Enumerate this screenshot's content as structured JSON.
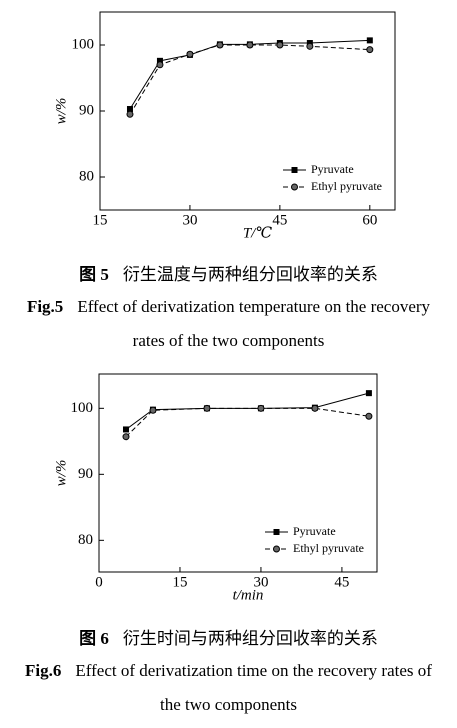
{
  "chart_data": [
    {
      "type": "line",
      "x_label": "T/℃",
      "y_label": "w/%",
      "x": [
        20,
        25,
        30,
        35,
        40,
        45,
        50,
        60
      ],
      "series": [
        {
          "name": "Pyruvate",
          "color": "#000000",
          "marker": "square",
          "dash": false,
          "values": [
            90.3,
            97.6,
            98.5,
            100.1,
            100.1,
            100.3,
            100.3,
            100.7
          ]
        },
        {
          "name": "Ethyl pyruvate",
          "color": "#000000",
          "marker": "circle",
          "dash": true,
          "values": [
            89.5,
            97.0,
            98.6,
            100.0,
            100.0,
            100.0,
            99.8,
            99.3
          ]
        }
      ],
      "xlim": [
        15,
        64.2
      ],
      "xticks": [
        15,
        30,
        45,
        60
      ],
      "ylim": [
        75,
        105
      ],
      "yticks": [
        80,
        90,
        100
      ],
      "legend": "lower right",
      "figure_label_zh": "图 5",
      "caption_zh": "衍生温度与两种组分回收率的关系",
      "figure_label_en": "Fig.5",
      "caption_en": "Effect of derivatization temperature on the recovery rates of the two components"
    },
    {
      "type": "line",
      "x_label": "t/min",
      "y_label": "w/%",
      "x": [
        5,
        10,
        20,
        30,
        40,
        50
      ],
      "series": [
        {
          "name": "Pyruvate",
          "color": "#000000",
          "marker": "square",
          "dash": false,
          "values": [
            96.8,
            99.8,
            100.0,
            100.0,
            100.1,
            102.3
          ]
        },
        {
          "name": "Ethyl pyruvate",
          "color": "#000000",
          "marker": "circle",
          "dash": true,
          "values": [
            95.7,
            99.7,
            100.0,
            100.0,
            100.0,
            98.8
          ]
        }
      ],
      "xlim": [
        0,
        51.5
      ],
      "xticks": [
        0,
        15,
        30,
        45
      ],
      "ylim": [
        75.2,
        105.2
      ],
      "yticks": [
        80,
        90,
        100
      ],
      "legend": "lower right",
      "figure_label_zh": "图 6",
      "caption_zh": "衍生时间与两种组分回收率的关系",
      "figure_label_en": "Fig.6",
      "caption_en": "Effect of derivatization time on the recovery rates of the two components"
    }
  ]
}
